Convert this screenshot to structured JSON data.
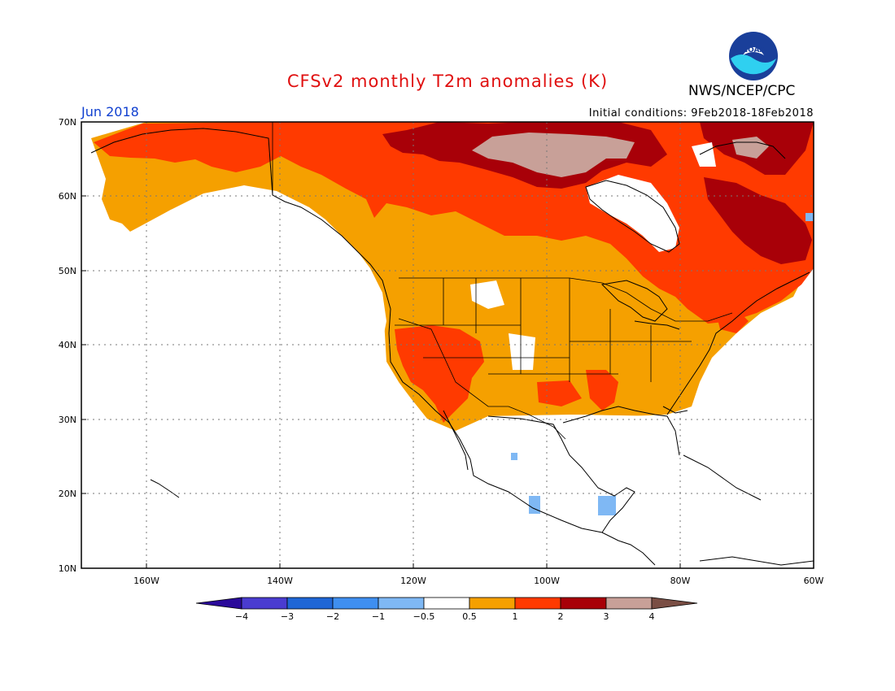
{
  "title": "CFSv2 monthly T2m anomalies (K)",
  "agency": "NWS/NCEP/CPC",
  "logo_text": "NOAA",
  "valid_month": "Jun 2018",
  "initial_conditions": "Initial conditions: 9Feb2018-18Feb2018",
  "map": {
    "lat_range": [
      10,
      70
    ],
    "lon_range": [
      -170,
      -60
    ],
    "lat_labels": [
      "70N",
      "60N",
      "50N",
      "40N",
      "30N",
      "20N",
      "10N"
    ],
    "lon_labels": [
      "160W",
      "140W",
      "120W",
      "100W",
      "80W",
      "60W"
    ],
    "grid": "dotted"
  },
  "colorbar": {
    "labels": [
      "-4",
      "-3",
      "-2",
      "-1",
      "-0.5",
      "0.5",
      "1",
      "2",
      "3",
      "4"
    ],
    "colors": [
      "#2a0a9a",
      "#4a3cd0",
      "#1f66d6",
      "#3f8ff0",
      "#7fb8f4",
      "#ffffff",
      "#f5a000",
      "#ff3a00",
      "#a80008",
      "#c8a098",
      "#7a4e44"
    ]
  },
  "anomaly_regions": [
    {
      "name": "alaska-canada-warm",
      "class": "0.5-1",
      "color": "#f5a000"
    },
    {
      "name": "north-canada-warm",
      "class": "1-2",
      "color": "#ff3a00"
    },
    {
      "name": "nunavut-core",
      "class": "2-3",
      "color": "#a80008"
    },
    {
      "name": "nunavut-peak",
      "class": "3-4",
      "color": "#c8a098"
    },
    {
      "name": "quebec-warm",
      "class": "2-3",
      "color": "#a80008"
    },
    {
      "name": "mexico-cool",
      "class": "-1 to -0.5",
      "color": "#7fb8f4"
    }
  ]
}
